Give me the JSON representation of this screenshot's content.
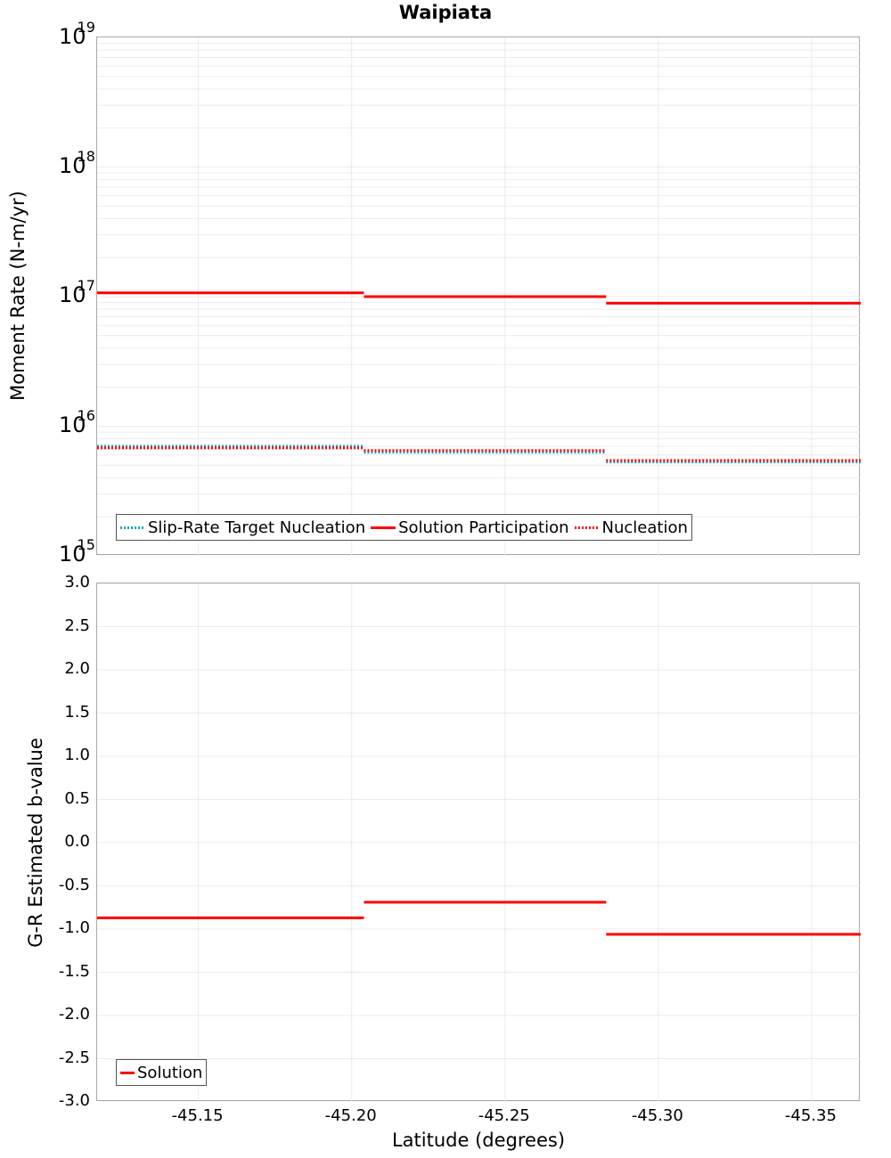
{
  "title": "Waipiata",
  "colors": {
    "solution": "#ff0000",
    "slip_rate_target": "#13a8b8",
    "nucleation": "#ff0000",
    "grid": "#ebebeb",
    "border": "#a8a8a8"
  },
  "top_panel": {
    "ylabel": "Moment Rate (N-m/yr)",
    "ytick_base": "10",
    "yticks": [
      {
        "exp": "19",
        "y": 41
      },
      {
        "exp": "18",
        "y": 186
      },
      {
        "exp": "17",
        "y": 331
      },
      {
        "exp": "16",
        "y": 477
      },
      {
        "exp": "15",
        "y": 622
      }
    ],
    "legend": [
      {
        "label": "Slip-Rate Target Nucleation",
        "style": "dotted-cyan"
      },
      {
        "label": "Solution Participation",
        "style": "solid"
      },
      {
        "label": "Nucleation",
        "style": "dotted-red"
      }
    ]
  },
  "bottom_panel": {
    "ylabel": "G-R Estimated b-value",
    "yticks": [
      "3.0",
      "2.5",
      "2.0",
      "1.5",
      "1.0",
      "0.5",
      "0.0",
      "-0.5",
      "-1.0",
      "-1.5",
      "-2.0",
      "-2.5",
      "-3.0"
    ],
    "legend": [
      {
        "label": "Solution",
        "style": "solid"
      }
    ]
  },
  "xaxis": {
    "label": "Latitude (degrees)",
    "ticks": [
      "-45.15",
      "-45.20",
      "-45.25",
      "-45.30",
      "-45.35"
    ]
  },
  "chart_data": [
    {
      "type": "line",
      "title": "Waipiata",
      "xlabel": "Latitude (degrees)",
      "ylabel": "Moment Rate (N-m/yr)",
      "yscale": "log",
      "ylim": [
        1000000000000000.0,
        1e+19
      ],
      "xlim": [
        -45.117,
        -45.366
      ],
      "x_reversed_note": "latitude decreases to the right",
      "grid": true,
      "legend_position": "lower-left inside",
      "x_bin_edges": [
        -45.117,
        -45.204,
        -45.283,
        -45.366
      ],
      "series": [
        {
          "name": "Slip-Rate Target Nucleation",
          "style": "dotted",
          "color": "#13a8b8",
          "values": [
            7000000000000000.0,
            6300000000000000.0,
            5300000000000000.0
          ]
        },
        {
          "name": "Solution Participation",
          "style": "solid",
          "color": "#ff0000",
          "values": [
            1.07e+17,
            1e+17,
            8.9e+16
          ]
        },
        {
          "name": "Nucleation",
          "style": "dotted",
          "color": "#ff0000",
          "values": [
            6800000000000000.0,
            6500000000000000.0,
            5450000000000000.0
          ]
        }
      ]
    },
    {
      "type": "line",
      "xlabel": "Latitude (degrees)",
      "ylabel": "G-R Estimated b-value",
      "ylim": [
        -3.0,
        3.0
      ],
      "xlim": [
        -45.117,
        -45.366
      ],
      "xticks": [
        "-45.15",
        "-45.20",
        "-45.25",
        "-45.30",
        "-45.35"
      ],
      "grid": true,
      "legend_position": "lower-left inside",
      "x_bin_edges": [
        -45.117,
        -45.204,
        -45.283,
        -45.366
      ],
      "series": [
        {
          "name": "Solution",
          "style": "solid",
          "color": "#ff0000",
          "values": [
            -0.87,
            -0.69,
            -1.06
          ]
        }
      ]
    }
  ]
}
